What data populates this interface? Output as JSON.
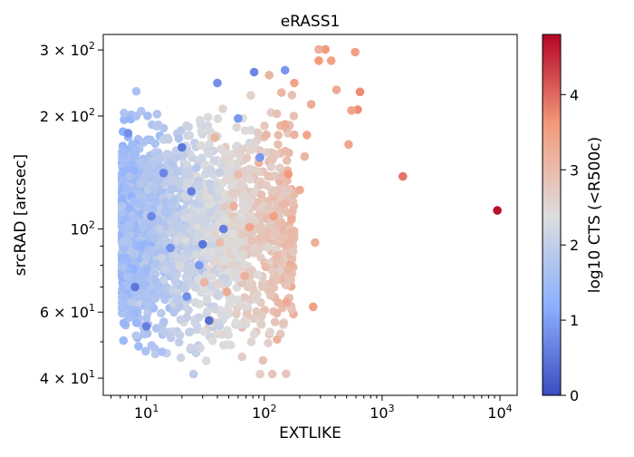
{
  "chart_data": {
    "type": "scatter",
    "title": "eRASS1",
    "xlabel": "EXTLIKE",
    "ylabel": "srcRAD [arcsec]",
    "colorbar_label": "log10 CTS (<R500c)",
    "x_scale": "log",
    "y_scale": "log",
    "xlim": [
      4.3,
      14000
    ],
    "ylim": [
      36,
      330
    ],
    "grid": false,
    "colormap": "coolwarm",
    "colorbar_range": [
      0,
      4.8
    ],
    "x_ticks": [
      {
        "value": 10,
        "base": "10",
        "exp": "1"
      },
      {
        "value": 100,
        "base": "10",
        "exp": "2"
      },
      {
        "value": 1000,
        "base": "10",
        "exp": "3"
      },
      {
        "value": 10000,
        "base": "10",
        "exp": "4"
      }
    ],
    "y_ticks": [
      {
        "value": 40,
        "mant": "4",
        "base": "10",
        "exp": "1"
      },
      {
        "value": 60,
        "mant": "6",
        "base": "10",
        "exp": "1"
      },
      {
        "value": 100,
        "mant": "",
        "base": "10",
        "exp": "2"
      },
      {
        "value": 200,
        "mant": "2",
        "base": "10",
        "exp": "2"
      },
      {
        "value": 300,
        "mant": "3",
        "base": "10",
        "exp": "2"
      }
    ],
    "colorbar_ticks": [
      "0",
      "1",
      "2",
      "3",
      "4"
    ],
    "colorbar_tick_values": [
      0,
      1,
      2,
      3,
      4
    ],
    "points": [
      [
        9500,
        112,
        4.7
      ],
      [
        1500,
        138,
        3.9
      ],
      [
        650,
        232,
        3.7
      ],
      [
        620,
        208,
        3.7
      ],
      [
        590,
        296,
        3.5
      ],
      [
        550,
        207,
        3.4
      ],
      [
        520,
        168,
        3.4
      ],
      [
        410,
        235,
        3.3
      ],
      [
        370,
        281,
        3.5
      ],
      [
        330,
        301,
        3.6
      ],
      [
        290,
        301,
        3.2
      ],
      [
        290,
        281,
        3.6
      ],
      [
        260,
        62,
        3.5
      ],
      [
        270,
        92,
        3.2
      ],
      [
        250,
        215,
        3.3
      ],
      [
        230,
        178,
        3.4
      ],
      [
        220,
        156,
        3.1
      ],
      [
        200,
        127,
        3.3
      ],
      [
        180,
        245,
        3.4
      ],
      [
        170,
        106,
        3.3
      ],
      [
        160,
        140,
        3.6
      ],
      [
        150,
        190,
        3.3
      ],
      [
        140,
        231,
        3.1
      ],
      [
        130,
        85,
        3.0
      ],
      [
        120,
        108,
        3.5
      ],
      [
        110,
        257,
        3.1
      ],
      [
        90,
        150,
        3.2
      ],
      [
        75,
        101,
        3.4
      ],
      [
        68,
        75,
        3.2
      ],
      [
        60,
        140,
        3.0
      ],
      [
        55,
        115,
        3.2
      ],
      [
        48,
        68,
        3.3
      ],
      [
        42,
        92,
        3.0
      ],
      [
        38,
        175,
        3.1
      ],
      [
        35,
        57,
        2.9
      ],
      [
        31,
        72,
        3.1
      ],
      [
        82,
        262,
        0.7
      ],
      [
        150,
        265,
        0.9
      ],
      [
        92,
        155,
        0.9
      ],
      [
        34,
        57,
        0.4
      ],
      [
        45,
        100,
        0.6
      ],
      [
        28,
        80,
        0.9
      ],
      [
        20,
        165,
        0.5
      ],
      [
        24,
        126,
        0.6
      ],
      [
        16,
        89,
        0.8
      ],
      [
        14,
        141,
        0.7
      ],
      [
        10,
        55,
        0.6
      ],
      [
        8,
        70,
        0.5
      ],
      [
        7,
        180,
        0.8
      ],
      [
        11,
        108,
        0.7
      ],
      [
        30,
        91,
        0.5
      ],
      [
        22,
        66,
        0.8
      ],
      [
        60,
        197,
        0.9
      ],
      [
        40,
        245,
        0.8
      ]
    ]
  }
}
